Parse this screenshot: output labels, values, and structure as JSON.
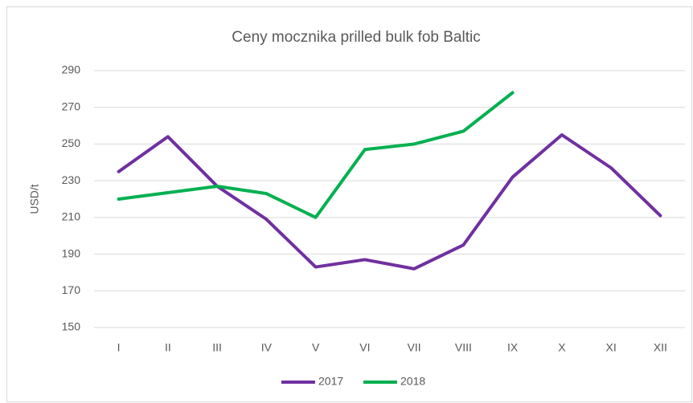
{
  "chart_data": {
    "type": "line",
    "title": "Ceny mocznika prilled bulk fob Baltic",
    "y_label": "USD/t",
    "categories": [
      "I",
      "II",
      "III",
      "IV",
      "V",
      "VI",
      "VII",
      "VIII",
      "IX",
      "X",
      "XI",
      "XII"
    ],
    "series": [
      {
        "name": "2017",
        "color": "#7030a0",
        "values": [
          235,
          254,
          227,
          209,
          183,
          187,
          182,
          195,
          232,
          255,
          237,
          211
        ]
      },
      {
        "name": "2018",
        "color": "#00b050",
        "values": [
          220,
          223.5,
          227,
          223,
          210,
          247,
          250,
          257,
          278,
          null,
          null,
          null
        ]
      }
    ],
    "ylim": [
      150,
      290
    ],
    "yticks": [
      150,
      170,
      190,
      210,
      230,
      250,
      270,
      290
    ],
    "grid": true,
    "legend": "bottom"
  }
}
